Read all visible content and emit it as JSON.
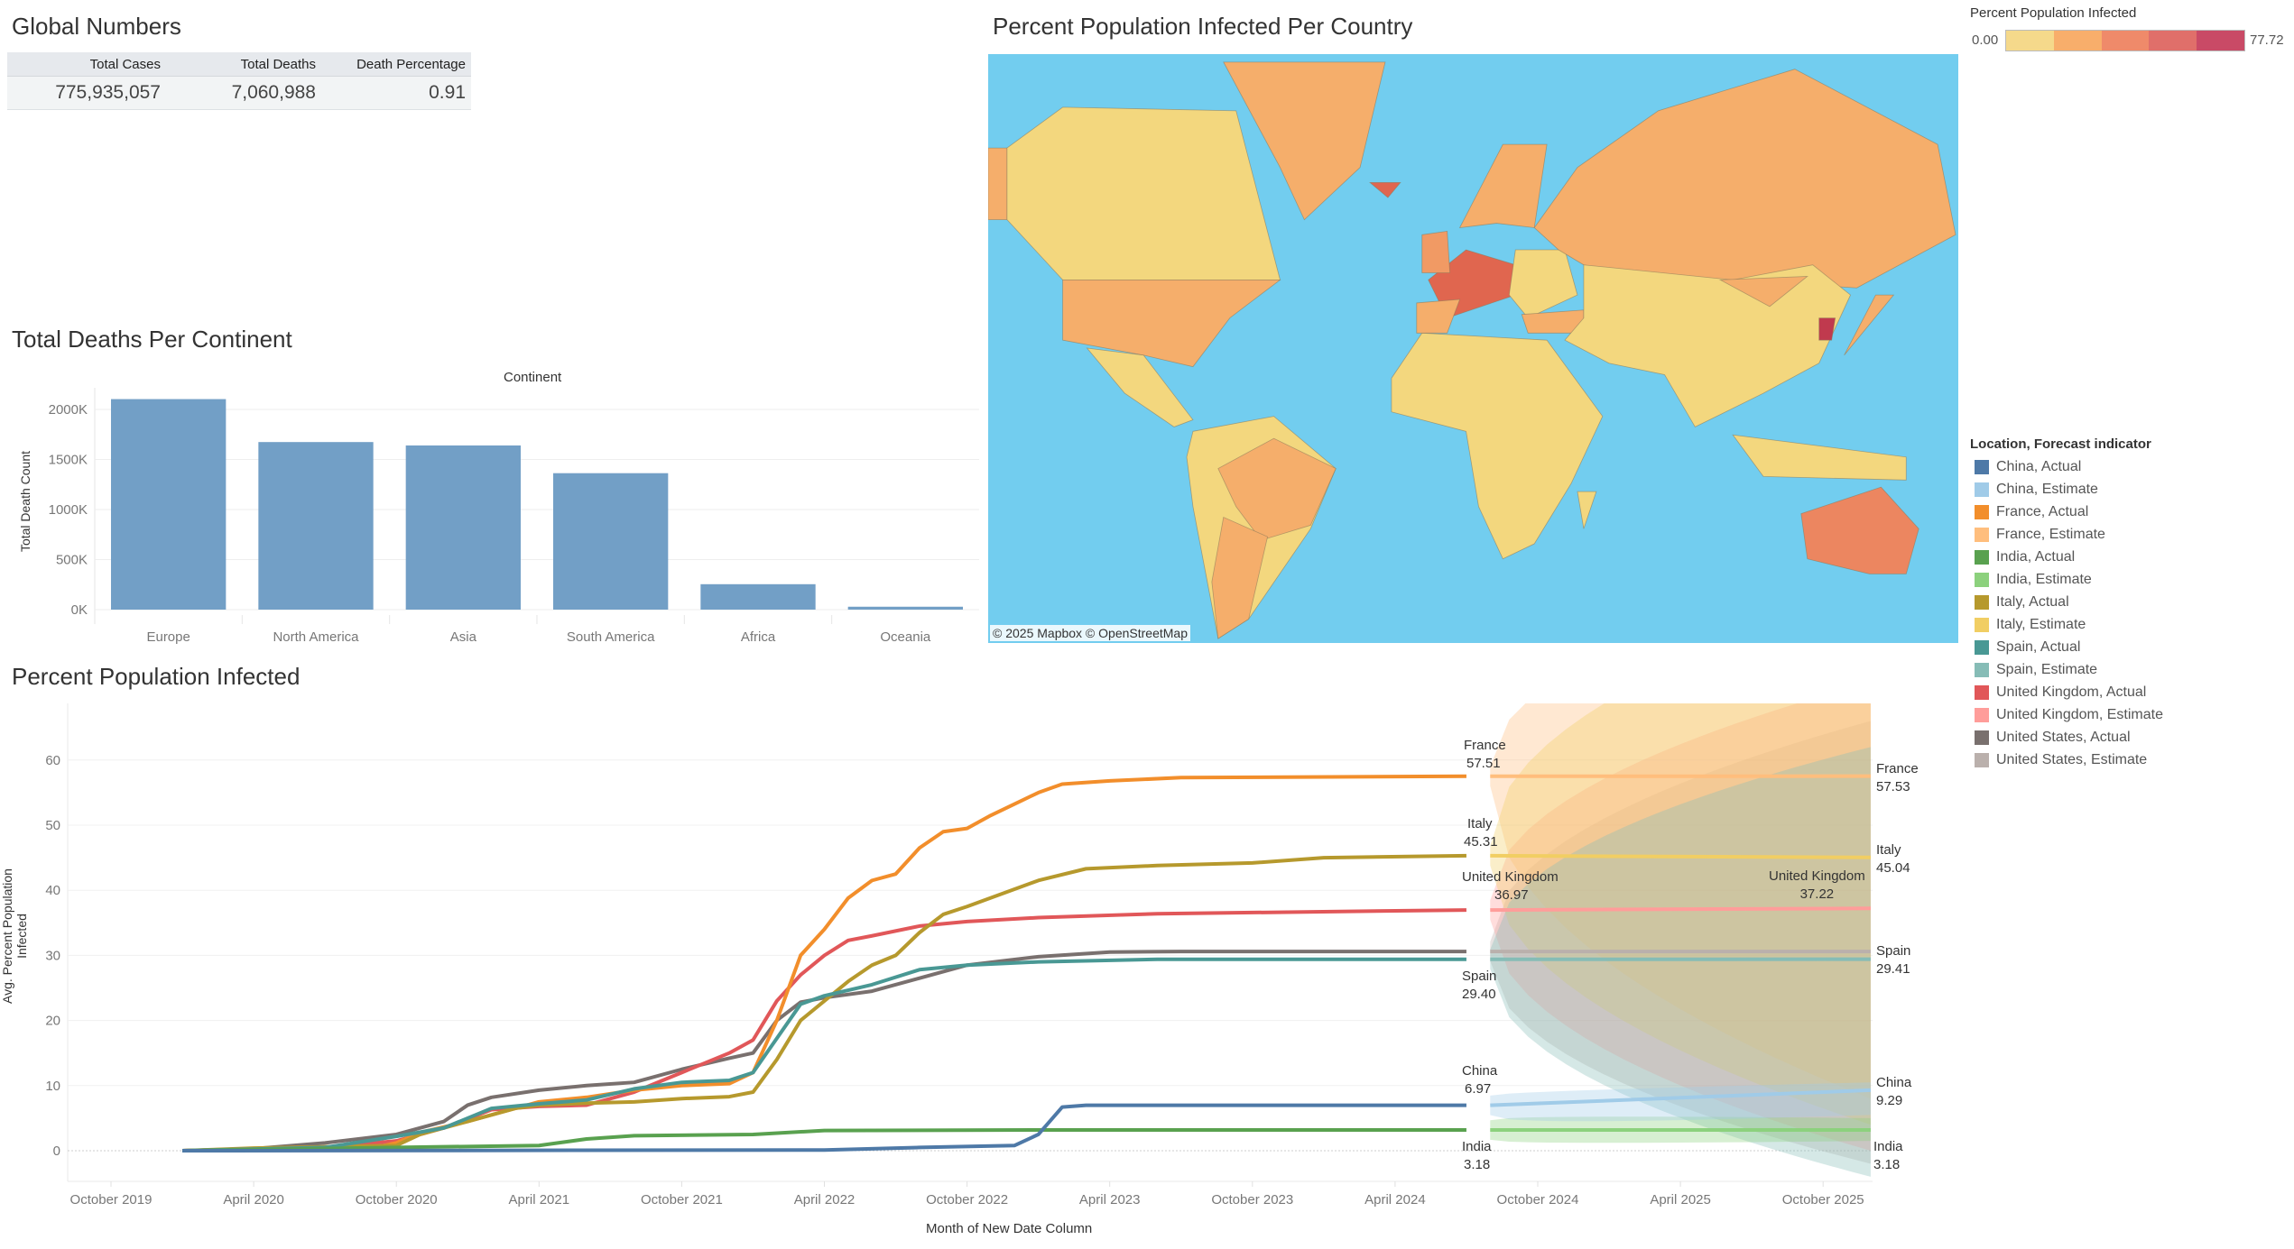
{
  "global_numbers": {
    "title": "Global Numbers",
    "headers": [
      "Total Cases",
      "Total Deaths",
      "Death Percentage"
    ],
    "values": [
      "775,935,057",
      "7,060,988",
      "0.91"
    ]
  },
  "map": {
    "title": "Percent Population Infected Per Country",
    "attribution": "© 2025 Mapbox  © OpenStreetMap",
    "ocean_color": "#72cdef",
    "color_legend": {
      "title": "Percent Population Infected",
      "min": "0.00",
      "max": "77.72",
      "steps": [
        "#f5d98b",
        "#f8ae6b",
        "#ef8a6a",
        "#e06f6a",
        "#c94a66"
      ]
    }
  },
  "chart_data": [
    {
      "type": "bar",
      "title": "Total Deaths Per Continent",
      "column_header": "Continent",
      "ylabel": "Total Death Count",
      "xlabel": "",
      "categories": [
        "Europe",
        "North America",
        "Asia",
        "South America",
        "Africa",
        "Oceania"
      ],
      "values": [
        2103000,
        1674000,
        1640000,
        1363000,
        254000,
        29000
      ],
      "yticks": [
        "0K",
        "500K",
        "1000K",
        "1500K",
        "2000K"
      ],
      "ylim": [
        0,
        2200000
      ],
      "color": "#729fc6",
      "grid": true
    },
    {
      "type": "line",
      "title": "Percent Population Infected",
      "xlabel": "Month of New Date Column",
      "ylabel": "Avg. Percent Population Infected",
      "ylim": [
        -5,
        69
      ],
      "yticks": [
        0,
        10,
        20,
        30,
        40,
        50,
        60
      ],
      "xticks": [
        "October 2019",
        "April 2020",
        "October 2020",
        "April 2021",
        "October 2021",
        "April 2022",
        "October 2022",
        "April 2023",
        "October 2023",
        "April 2024",
        "October 2024",
        "April 2025",
        "October 2025"
      ],
      "grid": true,
      "legend": {
        "title": "Location, Forecast indicator",
        "placement": "right",
        "items": [
          {
            "label": "China, Actual",
            "color": "#4e79a7"
          },
          {
            "label": "China, Estimate",
            "color": "#a0cbe8"
          },
          {
            "label": "France, Actual",
            "color": "#f28e2b"
          },
          {
            "label": "France, Estimate",
            "color": "#ffbe7d"
          },
          {
            "label": "India, Actual",
            "color": "#59a14f"
          },
          {
            "label": "India, Estimate",
            "color": "#8cd17d"
          },
          {
            "label": "Italy, Actual",
            "color": "#b6992d"
          },
          {
            "label": "Italy, Estimate",
            "color": "#f1ce63"
          },
          {
            "label": "Spain, Actual",
            "color": "#499894"
          },
          {
            "label": "Spain, Estimate",
            "color": "#86bcb6"
          },
          {
            "label": "United Kingdom, Actual",
            "color": "#e15759"
          },
          {
            "label": "United Kingdom, Estimate",
            "color": "#ff9d9a"
          },
          {
            "label": "United States, Actual",
            "color": "#79706e"
          },
          {
            "label": "United States, Estimate",
            "color": "#bab0ac"
          }
        ]
      },
      "series": [
        {
          "name": "United States",
          "color": "#79706e",
          "estimate_color": "#bab0ac",
          "actual": [
            [
              "2020-01",
              0
            ],
            [
              "2020-04",
              0.3
            ],
            [
              "2020-07",
              1.2
            ],
            [
              "2020-10",
              2.5
            ],
            [
              "2020-12",
              4.5
            ],
            [
              "2021-01",
              7
            ],
            [
              "2021-02",
              8.2
            ],
            [
              "2021-04",
              9.3
            ],
            [
              "2021-06",
              10
            ],
            [
              "2021-08",
              10.5
            ],
            [
              "2021-10",
              12.5
            ],
            [
              "2021-12",
              14.2
            ],
            [
              "2022-01",
              15
            ],
            [
              "2022-02",
              20
            ],
            [
              "2022-03",
              22.8
            ],
            [
              "2022-04",
              23.5
            ],
            [
              "2022-06",
              24.5
            ],
            [
              "2022-08",
              26.5
            ],
            [
              "2022-10",
              28.5
            ],
            [
              "2023-01",
              29.8
            ],
            [
              "2023-04",
              30.5
            ],
            [
              "2023-07",
              30.6
            ],
            [
              "2024-07",
              30.6
            ]
          ],
          "estimate": [
            [
              "2024-08",
              30.6
            ],
            [
              "2025-12",
              30.6
            ]
          ],
          "interval_end": [
            -2,
            66
          ]
        },
        {
          "name": "United Kingdom",
          "color": "#e15759",
          "estimate_color": "#ff9d9a",
          "actual": [
            [
              "2020-01",
              0
            ],
            [
              "2020-07",
              0.5
            ],
            [
              "2020-10",
              1.5
            ],
            [
              "2020-12",
              3.5
            ],
            [
              "2021-02",
              6.3
            ],
            [
              "2021-04",
              6.8
            ],
            [
              "2021-06",
              7
            ],
            [
              "2021-08",
              9
            ],
            [
              "2021-10",
              12
            ],
            [
              "2021-12",
              15
            ],
            [
              "2022-01",
              17
            ],
            [
              "2022-02",
              23
            ],
            [
              "2022-03",
              27
            ],
            [
              "2022-04",
              30
            ],
            [
              "2022-05",
              32.3
            ],
            [
              "2022-06",
              33
            ],
            [
              "2022-08",
              34.5
            ],
            [
              "2022-10",
              35.2
            ],
            [
              "2023-01",
              35.8
            ],
            [
              "2023-06",
              36.4
            ],
            [
              "2024-07",
              36.97
            ]
          ],
          "estimate": [
            [
              "2024-08",
              36.97
            ],
            [
              "2025-12",
              37.22
            ]
          ],
          "interval_end": [
            0,
            72
          ]
        },
        {
          "name": "France",
          "color": "#f28e2b",
          "estimate_color": "#ffbe7d",
          "actual": [
            [
              "2020-01",
              0
            ],
            [
              "2020-09",
              0.4
            ],
            [
              "2020-10",
              1.2
            ],
            [
              "2020-11",
              2.8
            ],
            [
              "2021-01",
              4.5
            ],
            [
              "2021-03",
              6.5
            ],
            [
              "2021-04",
              7.5
            ],
            [
              "2021-06",
              8.2
            ],
            [
              "2021-08",
              9.3
            ],
            [
              "2021-10",
              10
            ],
            [
              "2021-12",
              10.3
            ],
            [
              "2022-01",
              12
            ],
            [
              "2022-02",
              20
            ],
            [
              "2022-03",
              30
            ],
            [
              "2022-04",
              34
            ],
            [
              "2022-05",
              38.8
            ],
            [
              "2022-06",
              41.5
            ],
            [
              "2022-07",
              42.5
            ],
            [
              "2022-08",
              46.5
            ],
            [
              "2022-09",
              49
            ],
            [
              "2022-10",
              49.5
            ],
            [
              "2022-11",
              51.5
            ],
            [
              "2023-01",
              55
            ],
            [
              "2023-02",
              56.3
            ],
            [
              "2023-04",
              56.8
            ],
            [
              "2023-07",
              57.3
            ],
            [
              "2024-07",
              57.51
            ]
          ],
          "estimate": [
            [
              "2024-08",
              57.51
            ],
            [
              "2025-12",
              57.53
            ]
          ],
          "interval_end": [
            8,
            90
          ]
        },
        {
          "name": "Italy",
          "color": "#b6992d",
          "estimate_color": "#f1ce63",
          "actual": [
            [
              "2020-01",
              0
            ],
            [
              "2020-04",
              0.4
            ],
            [
              "2020-10",
              0.8
            ],
            [
              "2020-11",
              2.5
            ],
            [
              "2021-01",
              4.5
            ],
            [
              "2021-03",
              6.5
            ],
            [
              "2021-04",
              7
            ],
            [
              "2021-06",
              7.3
            ],
            [
              "2021-08",
              7.5
            ],
            [
              "2021-10",
              8
            ],
            [
              "2021-12",
              8.3
            ],
            [
              "2022-01",
              9
            ],
            [
              "2022-02",
              14
            ],
            [
              "2022-03",
              20
            ],
            [
              "2022-04",
              23
            ],
            [
              "2022-05",
              26
            ],
            [
              "2022-06",
              28.5
            ],
            [
              "2022-07",
              30
            ],
            [
              "2022-08",
              33.5
            ],
            [
              "2022-09",
              36.3
            ],
            [
              "2022-10",
              37.5
            ],
            [
              "2023-01",
              41.5
            ],
            [
              "2023-03",
              43.3
            ],
            [
              "2023-06",
              43.8
            ],
            [
              "2023-10",
              44.2
            ],
            [
              "2024-01",
              45
            ],
            [
              "2024-07",
              45.31
            ]
          ],
          "estimate": [
            [
              "2024-08",
              45.31
            ],
            [
              "2025-12",
              45.04
            ]
          ],
          "interval_end": [
            4,
            86
          ]
        },
        {
          "name": "Spain",
          "color": "#499894",
          "estimate_color": "#86bcb6",
          "actual": [
            [
              "2020-01",
              0
            ],
            [
              "2020-07",
              0.5
            ],
            [
              "2020-10",
              2.2
            ],
            [
              "2020-12",
              3.5
            ],
            [
              "2021-02",
              6.5
            ],
            [
              "2021-04",
              7.2
            ],
            [
              "2021-06",
              7.8
            ],
            [
              "2021-08",
              9.5
            ],
            [
              "2021-10",
              10.5
            ],
            [
              "2021-12",
              10.8
            ],
            [
              "2022-01",
              12
            ],
            [
              "2022-03",
              22.5
            ],
            [
              "2022-04",
              23.8
            ],
            [
              "2022-06",
              25.5
            ],
            [
              "2022-08",
              27.8
            ],
            [
              "2022-10",
              28.5
            ],
            [
              "2023-01",
              29
            ],
            [
              "2023-06",
              29.4
            ],
            [
              "2024-07",
              29.4
            ]
          ],
          "estimate": [
            [
              "2024-08",
              29.4
            ],
            [
              "2025-12",
              29.41
            ]
          ],
          "interval_end": [
            -4,
            62
          ]
        },
        {
          "name": "India",
          "color": "#59a14f",
          "estimate_color": "#8cd17d",
          "actual": [
            [
              "2020-01",
              0
            ],
            [
              "2020-10",
              0.5
            ],
            [
              "2021-04",
              0.8
            ],
            [
              "2021-06",
              1.8
            ],
            [
              "2021-08",
              2.3
            ],
            [
              "2022-01",
              2.5
            ],
            [
              "2022-04",
              3.1
            ],
            [
              "2023-01",
              3.18
            ],
            [
              "2024-07",
              3.18
            ]
          ],
          "estimate": [
            [
              "2024-08",
              3.18
            ],
            [
              "2025-12",
              3.18
            ]
          ],
          "interval_end": [
            1.5,
            5
          ]
        },
        {
          "name": "China",
          "color": "#4e79a7",
          "estimate_color": "#a0cbe8",
          "actual": [
            [
              "2020-01",
              0
            ],
            [
              "2022-04",
              0.1
            ],
            [
              "2022-08",
              0.5
            ],
            [
              "2022-12",
              0.8
            ],
            [
              "2023-01",
              2.5
            ],
            [
              "2023-02",
              6.7
            ],
            [
              "2023-03",
              6.97
            ],
            [
              "2024-07",
              6.97
            ]
          ],
          "estimate": [
            [
              "2024-08",
              6.97
            ],
            [
              "2025-12",
              9.29
            ]
          ],
          "interval_end": [
            5.5,
            10.5
          ]
        }
      ],
      "labels_last_actual": [
        {
          "name": "France",
          "value": "57.51"
        },
        {
          "name": "Italy",
          "value": "45.31"
        },
        {
          "name": "United Kingdom",
          "value": "36.97"
        },
        {
          "name": "Spain",
          "value": "29.40"
        },
        {
          "name": "China",
          "value": "6.97"
        },
        {
          "name": "India",
          "value": "3.18"
        }
      ],
      "labels_last_estimate": [
        {
          "name": "France",
          "value": "57.53"
        },
        {
          "name": "Italy",
          "value": "45.04"
        },
        {
          "name": "United Kingdom",
          "value": "37.22"
        },
        {
          "name": "Spain",
          "value": "29.41"
        },
        {
          "name": "China",
          "value": "9.29"
        },
        {
          "name": "India",
          "value": "3.18"
        }
      ]
    }
  ]
}
